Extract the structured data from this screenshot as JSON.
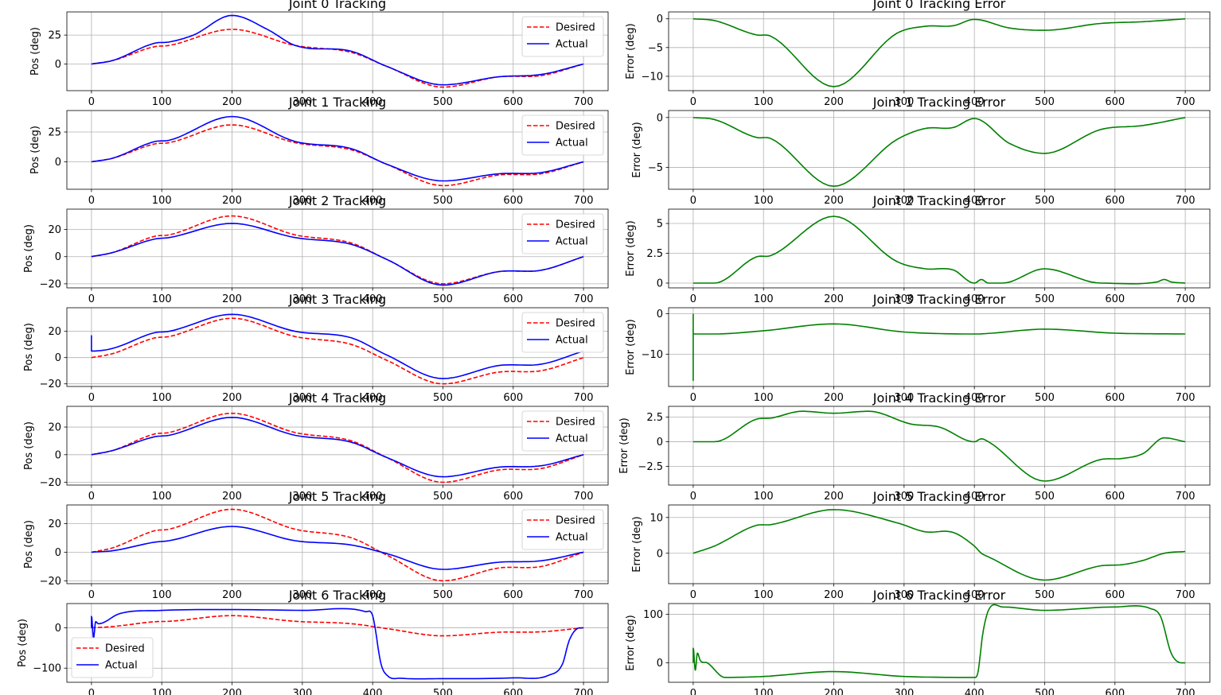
{
  "colors": {
    "desired": "#ff0000",
    "actual": "#0000ff",
    "error": "#008000",
    "grid": "#b0b0b0"
  },
  "chart_data": [
    {
      "type": "line",
      "title": "Joint 0 Tracking",
      "ylabel": "Pos (deg)",
      "xlim": [
        -35,
        735
      ],
      "ylim": [
        -23,
        45
      ],
      "xticks": [
        0,
        100,
        200,
        300,
        400,
        500,
        600,
        700
      ],
      "yticks": [
        0,
        25
      ],
      "grid": true,
      "legend": "upper-right",
      "series": [
        {
          "name": "Desired",
          "style": "dashed",
          "color": "#ff0000",
          "x": [
            0,
            30,
            90,
            110,
            200,
            290,
            370,
            420,
            500,
            580,
            640,
            700
          ],
          "y": [
            0,
            3,
            15,
            16,
            30,
            16,
            10,
            -2,
            -20,
            -11,
            -10,
            0
          ]
        },
        {
          "name": "Actual",
          "style": "solid",
          "color": "#0000ff",
          "x": [
            0,
            30,
            90,
            110,
            145,
            200,
            250,
            290,
            370,
            420,
            500,
            580,
            640,
            700
          ],
          "y": [
            0,
            3,
            18,
            19,
            25,
            42,
            30,
            16,
            11,
            -2,
            -18,
            -11,
            -9,
            0
          ]
        }
      ]
    },
    {
      "type": "line",
      "title": "Joint 0 Tracking Error",
      "ylabel": "Error (deg)",
      "xlim": [
        -35,
        735
      ],
      "ylim": [
        -12.5,
        1.2
      ],
      "xticks": [
        0,
        100,
        200,
        300,
        400,
        500,
        600,
        700
      ],
      "yticks": [
        -10,
        -5,
        0
      ],
      "grid": true,
      "series": [
        {
          "color": "#008000",
          "x": [
            0,
            30,
            90,
            110,
            200,
            290,
            330,
            370,
            400,
            450,
            500,
            580,
            640,
            700
          ],
          "y": [
            0,
            -0.3,
            -2.8,
            -3,
            -11.8,
            -2.5,
            -1.3,
            -1.2,
            -0.1,
            -1.6,
            -2,
            -0.8,
            -0.5,
            0
          ]
        }
      ]
    },
    {
      "type": "line",
      "title": "Joint 1 Tracking",
      "ylabel": "Pos (deg)",
      "xlim": [
        -35,
        735
      ],
      "ylim": [
        -23,
        43
      ],
      "xticks": [
        0,
        100,
        200,
        300,
        400,
        500,
        600,
        700
      ],
      "yticks": [
        0,
        25
      ],
      "grid": true,
      "legend": "upper-right",
      "series": [
        {
          "name": "Desired",
          "style": "dashed",
          "color": "#ff0000",
          "x": [
            0,
            30,
            90,
            110,
            200,
            290,
            370,
            420,
            500,
            580,
            640,
            700
          ],
          "y": [
            0,
            3,
            15,
            16,
            31,
            16,
            10,
            -2,
            -20,
            -11,
            -10,
            0
          ]
        },
        {
          "name": "Actual",
          "style": "solid",
          "color": "#0000ff",
          "x": [
            0,
            30,
            90,
            110,
            200,
            290,
            370,
            420,
            500,
            580,
            640,
            700
          ],
          "y": [
            0,
            3,
            17,
            18,
            38,
            17,
            11,
            -2,
            -16,
            -10,
            -9,
            0
          ]
        }
      ]
    },
    {
      "type": "line",
      "title": "Joint 1 Tracking Error",
      "ylabel": "Error (deg)",
      "xlim": [
        -35,
        735
      ],
      "ylim": [
        -7.2,
        0.7
      ],
      "xticks": [
        0,
        100,
        200,
        300,
        400,
        500,
        600,
        700
      ],
      "yticks": [
        -5,
        0
      ],
      "grid": true,
      "series": [
        {
          "color": "#008000",
          "x": [
            0,
            30,
            90,
            110,
            200,
            290,
            330,
            370,
            400,
            450,
            500,
            580,
            640,
            700
          ],
          "y": [
            0,
            -0.2,
            -2,
            -2.1,
            -6.9,
            -2.2,
            -1.1,
            -1,
            -0.1,
            -2.6,
            -3.6,
            -1.2,
            -0.8,
            0
          ]
        }
      ]
    },
    {
      "type": "line",
      "title": "Joint 2 Tracking",
      "ylabel": "Pos (deg)",
      "xlim": [
        -35,
        735
      ],
      "ylim": [
        -23,
        35
      ],
      "xticks": [
        0,
        100,
        200,
        300,
        400,
        500,
        600,
        700
      ],
      "yticks": [
        -20,
        0,
        20
      ],
      "grid": true,
      "legend": "upper-right",
      "series": [
        {
          "name": "Desired",
          "style": "dashed",
          "color": "#ff0000",
          "x": [
            0,
            30,
            90,
            110,
            200,
            290,
            370,
            420,
            500,
            580,
            640,
            700
          ],
          "y": [
            0,
            3,
            15,
            16,
            30,
            16,
            10,
            -2,
            -20,
            -11,
            -10,
            0
          ]
        },
        {
          "name": "Actual",
          "style": "solid",
          "color": "#0000ff",
          "x": [
            0,
            30,
            90,
            110,
            200,
            290,
            370,
            420,
            500,
            580,
            640,
            700
          ],
          "y": [
            0,
            3,
            13,
            14,
            24.5,
            14,
            9,
            -2,
            -21,
            -11,
            -10,
            0
          ]
        }
      ]
    },
    {
      "type": "line",
      "title": "Joint 2 Tracking Error",
      "ylabel": "Error (deg)",
      "xlim": [
        -35,
        735
      ],
      "ylim": [
        -0.4,
        6.2
      ],
      "xticks": [
        0,
        100,
        200,
        300,
        400,
        500,
        600,
        700
      ],
      "yticks": [
        0.0,
        2.5,
        5.0
      ],
      "grid": true,
      "series": [
        {
          "color": "#008000",
          "x": [
            0,
            30,
            90,
            110,
            200,
            290,
            330,
            370,
            400,
            410,
            420,
            440,
            500,
            580,
            660,
            670,
            680,
            700
          ],
          "y": [
            0,
            0,
            2.2,
            2.3,
            5.6,
            1.8,
            1.2,
            1.1,
            0,
            0.3,
            0,
            0,
            1.2,
            0,
            0.1,
            0.3,
            0.1,
            0
          ]
        }
      ]
    },
    {
      "type": "line",
      "title": "Joint 3 Tracking",
      "ylabel": "Pos (deg)",
      "xlim": [
        -35,
        735
      ],
      "ylim": [
        -22,
        38
      ],
      "xticks": [
        0,
        100,
        200,
        300,
        400,
        500,
        600,
        700
      ],
      "yticks": [
        -20,
        0,
        20
      ],
      "grid": true,
      "legend": "upper-right",
      "series": [
        {
          "name": "Desired",
          "style": "dashed",
          "color": "#ff0000",
          "x": [
            0,
            30,
            90,
            110,
            200,
            290,
            370,
            420,
            500,
            580,
            640,
            700
          ],
          "y": [
            0,
            3,
            15,
            16,
            30,
            16,
            10,
            -2,
            -20,
            -11,
            -10,
            0
          ]
        },
        {
          "name": "Actual",
          "style": "solid",
          "color": "#0000ff",
          "x": [
            0,
            0,
            1,
            30,
            90,
            110,
            200,
            290,
            370,
            420,
            500,
            580,
            640,
            700
          ],
          "y": [
            17,
            5,
            5,
            7,
            19,
            20,
            33,
            20,
            15,
            2,
            -16,
            -6,
            -5,
            5
          ]
        }
      ]
    },
    {
      "type": "line",
      "title": "Joint 3 Tracking Error",
      "ylabel": "Error (deg)",
      "xlim": [
        -35,
        735
      ],
      "ylim": [
        -18,
        1.5
      ],
      "xticks": [
        0,
        100,
        200,
        300,
        400,
        500,
        600,
        700
      ],
      "yticks": [
        -10,
        0
      ],
      "grid": true,
      "series": [
        {
          "color": "#008000",
          "x": [
            0,
            0,
            0,
            2,
            30,
            100,
            200,
            300,
            400,
            500,
            600,
            700
          ],
          "y": [
            0,
            -16.5,
            -5,
            -5,
            -5,
            -4.2,
            -2.5,
            -4.5,
            -5,
            -3.8,
            -4.8,
            -5
          ]
        }
      ]
    },
    {
      "type": "line",
      "title": "Joint 4 Tracking",
      "ylabel": "Pos (deg)",
      "xlim": [
        -35,
        735
      ],
      "ylim": [
        -22,
        35
      ],
      "xticks": [
        0,
        100,
        200,
        300,
        400,
        500,
        600,
        700
      ],
      "yticks": [
        -20,
        0,
        20
      ],
      "grid": true,
      "legend": "upper-right",
      "series": [
        {
          "name": "Desired",
          "style": "dashed",
          "color": "#ff0000",
          "x": [
            0,
            30,
            90,
            110,
            200,
            290,
            370,
            420,
            500,
            580,
            640,
            700
          ],
          "y": [
            0,
            3,
            15,
            16,
            30,
            16,
            10,
            -2,
            -20,
            -11,
            -10,
            0
          ]
        },
        {
          "name": "Actual",
          "style": "solid",
          "color": "#0000ff",
          "x": [
            0,
            30,
            90,
            110,
            200,
            290,
            370,
            420,
            500,
            580,
            640,
            700
          ],
          "y": [
            0,
            3,
            13,
            14,
            27,
            14,
            9,
            -2,
            -16,
            -9,
            -8,
            0
          ]
        }
      ]
    },
    {
      "type": "line",
      "title": "Joint 4 Tracking Error",
      "ylabel": "Error (deg)",
      "xlim": [
        -35,
        735
      ],
      "ylim": [
        -4.4,
        3.6
      ],
      "xticks": [
        0,
        100,
        200,
        300,
        400,
        500,
        600,
        700
      ],
      "yticks": [
        -2.5,
        0.0,
        2.5
      ],
      "grid": true,
      "series": [
        {
          "color": "#008000",
          "x": [
            0,
            30,
            90,
            110,
            155,
            200,
            250,
            310,
            350,
            400,
            410,
            420,
            500,
            580,
            610,
            640,
            670,
            700
          ],
          "y": [
            0,
            0,
            2.3,
            2.4,
            3.1,
            2.9,
            3.1,
            1.8,
            1.5,
            0,
            0.3,
            0,
            -4,
            -1.8,
            -1.7,
            -1.2,
            0.4,
            0
          ]
        }
      ]
    },
    {
      "type": "line",
      "title": "Joint 5 Tracking",
      "ylabel": "Pos (deg)",
      "xlim": [
        -35,
        735
      ],
      "ylim": [
        -22,
        33
      ],
      "xticks": [
        0,
        100,
        200,
        300,
        400,
        500,
        600,
        700
      ],
      "yticks": [
        -20,
        0,
        20
      ],
      "grid": true,
      "legend": "upper-right",
      "series": [
        {
          "name": "Desired",
          "style": "dashed",
          "color": "#ff0000",
          "x": [
            0,
            30,
            90,
            110,
            200,
            290,
            370,
            420,
            500,
            580,
            640,
            700
          ],
          "y": [
            0,
            3,
            15,
            16,
            30,
            16,
            10,
            -2,
            -20,
            -11,
            -10,
            0
          ]
        },
        {
          "name": "Actual",
          "style": "solid",
          "color": "#0000ff",
          "x": [
            0,
            30,
            90,
            110,
            200,
            290,
            370,
            420,
            500,
            580,
            640,
            700
          ],
          "y": [
            0,
            1,
            7,
            8,
            18,
            8,
            5,
            -1,
            -12,
            -7,
            -6,
            0
          ]
        }
      ]
    },
    {
      "type": "line",
      "title": "Joint 5 Tracking Error",
      "ylabel": "Error (deg)",
      "xlim": [
        -35,
        735
      ],
      "ylim": [
        -8.5,
        13.5
      ],
      "xticks": [
        0,
        100,
        200,
        300,
        400,
        500,
        600,
        700
      ],
      "yticks": [
        0,
        10
      ],
      "grid": true,
      "series": [
        {
          "color": "#008000",
          "x": [
            0,
            30,
            90,
            110,
            200,
            290,
            330,
            370,
            400,
            410,
            420,
            500,
            580,
            610,
            640,
            670,
            700
          ],
          "y": [
            0,
            2,
            7.8,
            8,
            12.2,
            8.5,
            6,
            5.8,
            2,
            0,
            -1,
            -7.5,
            -3.5,
            -3.2,
            -2,
            0,
            0.5
          ]
        }
      ]
    },
    {
      "type": "line",
      "title": "Joint 6 Tracking",
      "ylabel": "Pos (deg)",
      "xlim": [
        -35,
        735
      ],
      "ylim": [
        -135,
        60
      ],
      "xticks": [
        0,
        100,
        200,
        300,
        400,
        500,
        600,
        700
      ],
      "yticks": [
        -100,
        0
      ],
      "grid": true,
      "legend": "lower-left",
      "series": [
        {
          "name": "Desired",
          "style": "dashed",
          "color": "#ff0000",
          "x": [
            0,
            30,
            90,
            110,
            200,
            290,
            370,
            420,
            500,
            580,
            640,
            700
          ],
          "y": [
            0,
            3,
            15,
            16,
            30,
            16,
            10,
            -2,
            -20,
            -11,
            -10,
            0
          ]
        },
        {
          "name": "Actual",
          "style": "solid",
          "color": "#0000ff",
          "x": [
            0,
            0,
            3,
            6,
            10,
            40,
            100,
            200,
            300,
            390,
            400,
            412,
            422,
            440,
            500,
            600,
            650,
            670,
            680,
            695,
            700
          ],
          "y": [
            0,
            28,
            -25,
            15,
            10,
            35,
            43,
            45,
            43,
            40,
            30,
            -90,
            -120,
            -125,
            -126,
            -124,
            -118,
            -90,
            -30,
            0,
            0
          ]
        }
      ]
    },
    {
      "type": "line",
      "title": "Joint 6 Tracking Error",
      "ylabel": "Error (deg)",
      "xlim": [
        -35,
        735
      ],
      "ylim": [
        -40,
        122
      ],
      "xticks": [
        0,
        100,
        200,
        300,
        400,
        500,
        600,
        700
      ],
      "yticks": [
        0,
        100
      ],
      "grid": true,
      "series": [
        {
          "color": "#008000",
          "x": [
            0,
            0,
            3,
            6,
            10,
            20,
            45,
            100,
            200,
            300,
            400,
            405,
            412,
            420,
            440,
            500,
            600,
            650,
            665,
            680,
            695,
            700
          ],
          "y": [
            0,
            30,
            -15,
            20,
            5,
            0,
            -30,
            -28,
            -18,
            -28,
            -30,
            -20,
            60,
            108,
            115,
            108,
            115,
            112,
            95,
            20,
            0,
            0
          ]
        }
      ]
    }
  ]
}
